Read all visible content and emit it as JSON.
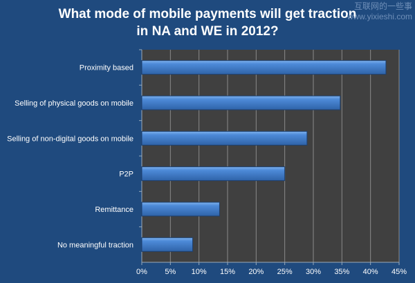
{
  "watermark": {
    "line1": "互联网的一些事",
    "line2": "www.yixieshi.com"
  },
  "chart_data": {
    "type": "bar",
    "orientation": "horizontal",
    "title": "What mode of mobile payments will get traction in NA and WE in 2012?",
    "title_lines": [
      "What mode of mobile payments will get traction",
      "in NA and WE in 2012?"
    ],
    "categories": [
      "Proximity based",
      "Selling of physical goods on mobile",
      "Selling of non-digital goods on mobile",
      "P2P",
      "Remittance",
      "No meaningful traction"
    ],
    "values": [
      42.7,
      34.7,
      28.9,
      25.0,
      13.6,
      8.9
    ],
    "unit": "%",
    "xlim": [
      0,
      45
    ],
    "xticks": [
      "0%",
      "5%",
      "10%",
      "15%",
      "20%",
      "25%",
      "30%",
      "35%",
      "40%",
      "45%"
    ],
    "grid": true,
    "colors": {
      "bar": "#4a86d4",
      "plot_bg": "#404040",
      "grid": "#8a8a8a"
    }
  }
}
